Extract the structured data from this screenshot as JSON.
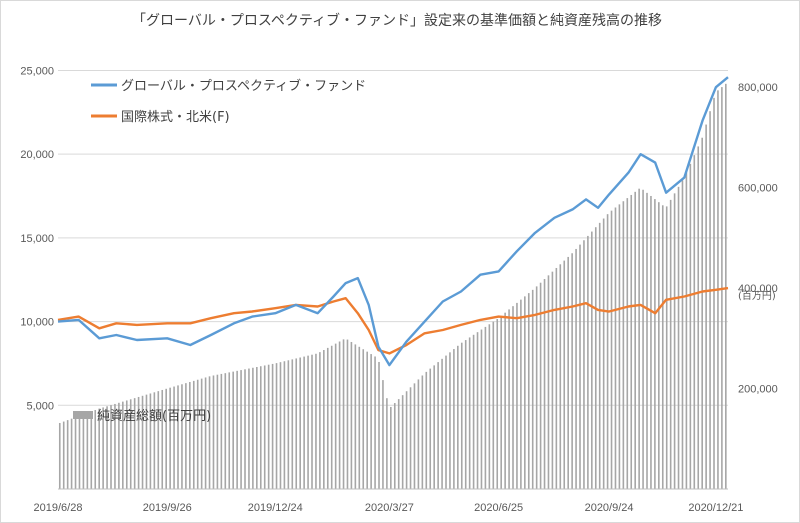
{
  "chart_data": {
    "type": "line",
    "title": "「グローバル・プロスペクティブ・ファンド」設定来の基準価額と純資産残高の推移",
    "x_ticks": [
      "2019/6/28",
      "2019/9/26",
      "2019/12/24",
      "2020/3/27",
      "2020/6/25",
      "2020/9/24",
      "2020/12/21"
    ],
    "x_range": [
      "2019/6/28",
      "2020/12/31"
    ],
    "ylim": [
      0,
      27000
    ],
    "y_ticks": [
      "5,000",
      "10,000",
      "15,000",
      "20,000",
      "25,000"
    ],
    "y2_unit": "(百万円)",
    "y2lim": [
      0,
      900000
    ],
    "y2_ticks": [
      "200,000",
      "400,000",
      "600,000",
      "800,000"
    ],
    "grid": true,
    "legend_position": "top-left",
    "colors": {
      "fund": "#5b9bd5",
      "index": "#ed7d31",
      "assets": "#a6a6a6"
    },
    "series": [
      {
        "name": "グローバル・プロスペクティブ・ファンド",
        "kind": "line",
        "axis": "left",
        "x": [
          "2019/6/28",
          "2019/7/15",
          "2019/8/1",
          "2019/8/15",
          "2019/9/1",
          "2019/9/26",
          "2019/10/15",
          "2019/11/1",
          "2019/11/20",
          "2019/12/5",
          "2019/12/24",
          "2020/1/10",
          "2020/1/28",
          "2020/2/10",
          "2020/2/20",
          "2020/3/1",
          "2020/3/10",
          "2020/3/18",
          "2020/3/27",
          "2020/4/10",
          "2020/4/25",
          "2020/5/10",
          "2020/5/25",
          "2020/6/10",
          "2020/6/25",
          "2020/7/10",
          "2020/7/25",
          "2020/8/10",
          "2020/8/25",
          "2020/9/5",
          "2020/9/15",
          "2020/9/24",
          "2020/10/10",
          "2020/10/20",
          "2020/11/1",
          "2020/11/10",
          "2020/11/25",
          "2020/12/10",
          "2020/12/21",
          "2020/12/31"
        ],
        "values": [
          10000,
          10100,
          9000,
          9200,
          8900,
          9000,
          8600,
          9200,
          9900,
          10300,
          10500,
          11000,
          10500,
          11500,
          12300,
          12600,
          11000,
          8500,
          7400,
          8800,
          10000,
          11200,
          11800,
          12800,
          13000,
          14200,
          15300,
          16200,
          16700,
          17300,
          16800,
          17600,
          18900,
          20000,
          19500,
          17700,
          18600,
          22000,
          24000,
          24600
        ]
      },
      {
        "name": "国際株式・北米(F)",
        "kind": "line",
        "axis": "left",
        "x": [
          "2019/6/28",
          "2019/7/15",
          "2019/8/1",
          "2019/8/15",
          "2019/9/1",
          "2019/9/26",
          "2019/10/15",
          "2019/11/1",
          "2019/11/20",
          "2019/12/5",
          "2019/12/24",
          "2020/1/10",
          "2020/1/28",
          "2020/2/10",
          "2020/2/20",
          "2020/3/1",
          "2020/3/10",
          "2020/3/18",
          "2020/3/27",
          "2020/4/10",
          "2020/4/25",
          "2020/5/10",
          "2020/5/25",
          "2020/6/10",
          "2020/6/25",
          "2020/7/10",
          "2020/7/25",
          "2020/8/10",
          "2020/8/25",
          "2020/9/5",
          "2020/9/15",
          "2020/9/24",
          "2020/10/10",
          "2020/10/20",
          "2020/11/1",
          "2020/11/10",
          "2020/11/25",
          "2020/12/10",
          "2020/12/21",
          "2020/12/31"
        ],
        "values": [
          10100,
          10300,
          9600,
          9900,
          9800,
          9900,
          9900,
          10200,
          10500,
          10600,
          10800,
          11000,
          10900,
          11200,
          11400,
          10500,
          9500,
          8300,
          8100,
          8600,
          9300,
          9500,
          9800,
          10100,
          10300,
          10200,
          10400,
          10700,
          10900,
          11100,
          10700,
          10600,
          10900,
          11000,
          10500,
          11300,
          11500,
          11800,
          11900,
          12000
        ]
      },
      {
        "name": "純資産総額(百万円)",
        "kind": "bar",
        "axis": "right",
        "x": [
          "2019/6/28",
          "2019/8/1",
          "2019/9/26",
          "2019/11/1",
          "2019/12/24",
          "2020/1/28",
          "2020/2/20",
          "2020/3/18",
          "2020/3/27",
          "2020/4/25",
          "2020/5/25",
          "2020/6/25",
          "2020/7/25",
          "2020/8/25",
          "2020/9/24",
          "2020/10/20",
          "2020/11/10",
          "2020/11/25",
          "2020/12/10",
          "2020/12/21",
          "2020/12/31"
        ],
        "values": [
          130000,
          160000,
          200000,
          225000,
          250000,
          270000,
          300000,
          260000,
          160000,
          230000,
          290000,
          340000,
          400000,
          470000,
          550000,
          600000,
          560000,
          620000,
          700000,
          790000,
          810000
        ]
      }
    ]
  }
}
